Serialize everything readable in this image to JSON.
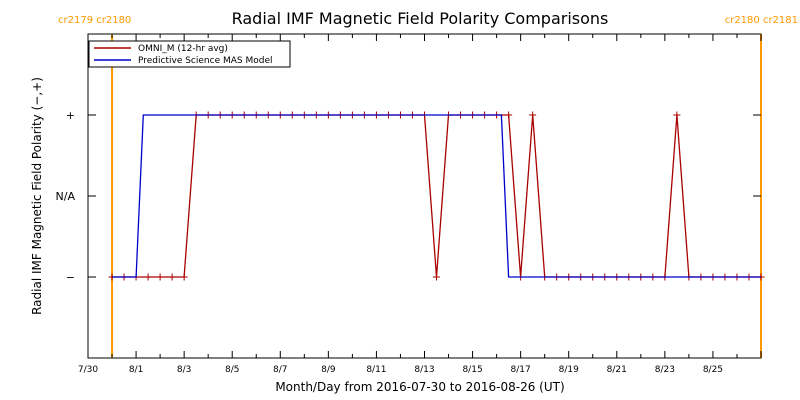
{
  "chart_data": {
    "type": "line",
    "title": "Radial IMF Magnetic Field Polarity Comparisons",
    "xlabel": "Month/Day from 2016-07-30 to 2016-08-26 (UT)",
    "ylabel": "Radial IMF Magnetic Field Polarity (−,+)",
    "xlim_days": [
      0,
      28
    ],
    "ylim": [
      -2,
      2
    ],
    "x_ticks": [
      {
        "day": 0,
        "label": "7/30"
      },
      {
        "day": 2,
        "label": "8/1"
      },
      {
        "day": 4,
        "label": "8/3"
      },
      {
        "day": 6,
        "label": "8/5"
      },
      {
        "day": 8,
        "label": "8/7"
      },
      {
        "day": 10,
        "label": "8/9"
      },
      {
        "day": 12,
        "label": "8/11"
      },
      {
        "day": 14,
        "label": "8/13"
      },
      {
        "day": 16,
        "label": "8/15"
      },
      {
        "day": 18,
        "label": "8/17"
      },
      {
        "day": 20,
        "label": "8/19"
      },
      {
        "day": 22,
        "label": "8/21"
      },
      {
        "day": 24,
        "label": "8/23"
      },
      {
        "day": 26,
        "label": "8/25"
      }
    ],
    "y_ticks": [
      {
        "value": 1,
        "label": "+"
      },
      {
        "value": 0,
        "label": "N/A"
      },
      {
        "value": -1,
        "label": "−"
      }
    ],
    "carrington_markers": [
      {
        "day": 1.0,
        "labels": [
          "cr2179",
          "cr2180"
        ],
        "side": "left"
      },
      {
        "day": 28.0,
        "labels": [
          "cr2180",
          "cr2181"
        ],
        "side": "right"
      }
    ],
    "legend": {
      "position": "top-left",
      "entries": [
        {
          "name": "OMNI_M (12-hr avg)",
          "color": "#aa0000"
        },
        {
          "name": "Predictive Science MAS Model",
          "color": "#0000cc"
        }
      ]
    },
    "series": [
      {
        "name": "OMNI_M (12-hr avg)",
        "color": "#aa0000",
        "marker": "plus",
        "x": [
          1.0,
          1.5,
          2.0,
          2.5,
          3.0,
          3.5,
          4.0,
          4.5,
          5.0,
          5.5,
          6.0,
          6.5,
          7.0,
          7.5,
          8.0,
          8.5,
          9.0,
          9.5,
          10.0,
          10.5,
          11.0,
          11.5,
          12.0,
          12.5,
          13.0,
          13.5,
          14.0,
          14.5,
          15.0,
          15.5,
          16.0,
          16.5,
          17.0,
          17.5,
          18.0,
          18.5,
          19.0,
          19.5,
          20.0,
          20.5,
          21.0,
          21.5,
          22.0,
          22.5,
          23.0,
          23.5,
          24.0,
          24.5,
          25.0,
          25.5,
          26.0,
          26.5,
          27.0,
          27.5,
          28.0
        ],
        "y": [
          -1,
          -1,
          -1,
          -1,
          -1,
          -1,
          -1,
          1,
          1,
          1,
          1,
          1,
          1,
          1,
          1,
          1,
          1,
          1,
          1,
          1,
          1,
          1,
          1,
          1,
          1,
          1,
          1,
          -1,
          1,
          1,
          1,
          1,
          1,
          1,
          -1,
          1,
          -1,
          -1,
          -1,
          -1,
          -1,
          -1,
          -1,
          -1,
          -1,
          -1,
          -1,
          1,
          -1,
          -1,
          -1,
          -1,
          -1,
          -1,
          -1
        ]
      },
      {
        "name": "Predictive Science MAS Model",
        "color": "#0000cc",
        "marker": "none",
        "x": [
          1.0,
          2.0,
          2.3,
          17.2,
          17.5,
          28.0
        ],
        "y": [
          -1,
          -1,
          1,
          1,
          -1,
          -1
        ]
      }
    ]
  }
}
